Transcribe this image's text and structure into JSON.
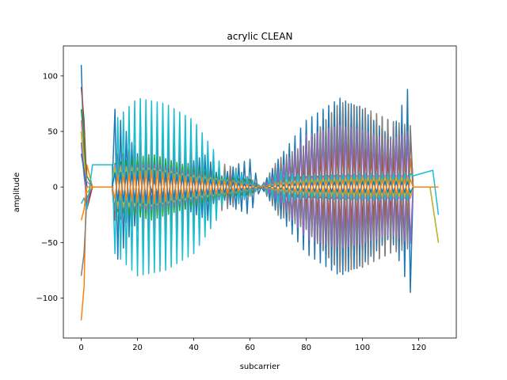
{
  "chart_data": {
    "type": "line",
    "title": "acrylic CLEAN",
    "xlabel": "subcarrier",
    "ylabel": "amplitude",
    "xlim": [
      -6.35,
      133.35
    ],
    "ylim": [
      -136,
      127
    ],
    "x_ticks": [
      0,
      20,
      40,
      60,
      80,
      100,
      120
    ],
    "y_ticks": [
      -100,
      -50,
      0,
      50,
      100
    ],
    "n_subcarriers": 128,
    "grid": false,
    "legend": "none",
    "approximate": true,
    "series": [
      {
        "color": "#1f77b4",
        "anchors": [
          [
            0,
            110
          ],
          [
            1,
            30
          ],
          [
            2,
            -15
          ],
          [
            4,
            0
          ],
          [
            11,
            0
          ],
          [
            12,
            -70
          ],
          [
            25,
            -5
          ],
          [
            45,
            -30
          ],
          [
            47,
            -15
          ],
          [
            50,
            -10
          ],
          [
            55,
            -20
          ],
          [
            60,
            -25
          ],
          [
            64,
            0
          ],
          [
            70,
            -25
          ],
          [
            80,
            -60
          ],
          [
            92,
            -80
          ],
          [
            100,
            -70
          ],
          [
            110,
            -45
          ],
          [
            117,
            -95
          ],
          [
            118,
            0
          ],
          [
            127,
            0
          ]
        ]
      },
      {
        "color": "#ff7f0e",
        "anchors": [
          [
            0,
            -120
          ],
          [
            1,
            -90
          ],
          [
            2,
            20
          ],
          [
            4,
            0
          ],
          [
            11,
            0
          ],
          [
            12,
            30
          ],
          [
            25,
            55
          ],
          [
            35,
            45
          ],
          [
            45,
            25
          ],
          [
            55,
            15
          ],
          [
            60,
            10
          ],
          [
            64,
            0
          ],
          [
            70,
            15
          ],
          [
            80,
            35
          ],
          [
            92,
            45
          ],
          [
            100,
            40
          ],
          [
            110,
            40
          ],
          [
            117,
            30
          ],
          [
            118,
            0
          ],
          [
            127,
            0
          ]
        ]
      },
      {
        "color": "#2ca02c",
        "anchors": [
          [
            0,
            70
          ],
          [
            1,
            40
          ],
          [
            2,
            10
          ],
          [
            4,
            0
          ],
          [
            11,
            0
          ],
          [
            12,
            25
          ],
          [
            25,
            35
          ],
          [
            40,
            20
          ],
          [
            50,
            10
          ],
          [
            60,
            8
          ],
          [
            64,
            0
          ],
          [
            70,
            10
          ],
          [
            90,
            12
          ],
          [
            117,
            12
          ],
          [
            118,
            0
          ],
          [
            127,
            0
          ]
        ]
      },
      {
        "color": "#d62728",
        "anchors": [
          [
            0,
            50
          ],
          [
            1,
            20
          ],
          [
            2,
            -20
          ],
          [
            4,
            0
          ],
          [
            11,
            0
          ],
          [
            12,
            -30
          ],
          [
            25,
            -25
          ],
          [
            35,
            -20
          ],
          [
            45,
            -15
          ],
          [
            55,
            -10
          ],
          [
            64,
            0
          ],
          [
            70,
            -12
          ],
          [
            80,
            -20
          ],
          [
            92,
            -40
          ],
          [
            100,
            -35
          ],
          [
            110,
            -25
          ],
          [
            117,
            -45
          ],
          [
            118,
            0
          ],
          [
            127,
            0
          ]
        ]
      },
      {
        "color": "#9467bd",
        "anchors": [
          [
            0,
            40
          ],
          [
            1,
            10
          ],
          [
            2,
            -10
          ],
          [
            4,
            0
          ],
          [
            11,
            0
          ],
          [
            12,
            20
          ],
          [
            25,
            25
          ],
          [
            40,
            15
          ],
          [
            50,
            8
          ],
          [
            60,
            5
          ],
          [
            64,
            0
          ],
          [
            70,
            -15
          ],
          [
            80,
            -55
          ],
          [
            92,
            -65
          ],
          [
            100,
            -60
          ],
          [
            110,
            -50
          ],
          [
            117,
            -60
          ],
          [
            118,
            0
          ],
          [
            124,
            0
          ],
          [
            127,
            -50
          ]
        ]
      },
      {
        "color": "#8c564b",
        "anchors": [
          [
            0,
            90
          ],
          [
            1,
            60
          ],
          [
            2,
            0
          ],
          [
            4,
            0
          ],
          [
            11,
            0
          ],
          [
            12,
            25
          ],
          [
            25,
            40
          ],
          [
            40,
            25
          ],
          [
            50,
            15
          ],
          [
            64,
            0
          ],
          [
            70,
            20
          ],
          [
            80,
            45
          ],
          [
            92,
            90
          ],
          [
            100,
            85
          ],
          [
            110,
            70
          ],
          [
            117,
            60
          ],
          [
            118,
            0
          ],
          [
            127,
            0
          ]
        ]
      },
      {
        "color": "#e377c2",
        "anchors": [
          [
            0,
            60
          ],
          [
            1,
            20
          ],
          [
            2,
            5
          ],
          [
            4,
            0
          ],
          [
            11,
            0
          ],
          [
            12,
            -20
          ],
          [
            25,
            -15
          ],
          [
            40,
            -10
          ],
          [
            55,
            -5
          ],
          [
            64,
            0
          ],
          [
            80,
            -8
          ],
          [
            100,
            -10
          ],
          [
            117,
            -10
          ],
          [
            118,
            0
          ],
          [
            127,
            0
          ]
        ]
      },
      {
        "color": "#7f7f7f",
        "anchors": [
          [
            0,
            -80
          ],
          [
            1,
            -60
          ],
          [
            2,
            -10
          ],
          [
            4,
            0
          ],
          [
            11,
            0
          ],
          [
            12,
            -25
          ],
          [
            25,
            -60
          ],
          [
            35,
            -50
          ],
          [
            45,
            -30
          ],
          [
            55,
            -20
          ],
          [
            64,
            0
          ],
          [
            70,
            -30
          ],
          [
            80,
            -45
          ],
          [
            92,
            -90
          ],
          [
            100,
            -85
          ],
          [
            110,
            -70
          ],
          [
            117,
            -65
          ],
          [
            118,
            0
          ],
          [
            127,
            0
          ]
        ]
      },
      {
        "color": "#bcbd22",
        "anchors": [
          [
            0,
            50
          ],
          [
            1,
            25
          ],
          [
            2,
            -5
          ],
          [
            4,
            0
          ],
          [
            11,
            0
          ],
          [
            12,
            20
          ],
          [
            25,
            20
          ],
          [
            40,
            12
          ],
          [
            55,
            6
          ],
          [
            64,
            0
          ],
          [
            80,
            8
          ],
          [
            100,
            10
          ],
          [
            117,
            10
          ],
          [
            118,
            0
          ],
          [
            124,
            0
          ],
          [
            127,
            -50
          ]
        ]
      },
      {
        "color": "#17becf",
        "anchors": [
          [
            0,
            -15
          ],
          [
            1,
            -10
          ],
          [
            2,
            -20
          ],
          [
            4,
            20
          ],
          [
            11,
            20
          ],
          [
            12,
            -60
          ],
          [
            20,
            -80
          ],
          [
            30,
            -75
          ],
          [
            40,
            -60
          ],
          [
            48,
            -30
          ],
          [
            55,
            15
          ],
          [
            64,
            0
          ],
          [
            70,
            15
          ],
          [
            80,
            10
          ],
          [
            100,
            12
          ],
          [
            117,
            12
          ],
          [
            118,
            10
          ],
          [
            125,
            15
          ],
          [
            127,
            -25
          ]
        ]
      },
      {
        "color": "#1f77b4",
        "anchors": [
          [
            0,
            30
          ],
          [
            1,
            15
          ],
          [
            2,
            0
          ],
          [
            4,
            0
          ],
          [
            11,
            0
          ],
          [
            12,
            15
          ],
          [
            25,
            18
          ],
          [
            40,
            10
          ],
          [
            55,
            5
          ],
          [
            64,
            0
          ],
          [
            80,
            5
          ],
          [
            100,
            6
          ],
          [
            117,
            6
          ],
          [
            118,
            0
          ],
          [
            127,
            0
          ]
        ]
      },
      {
        "color": "#ff7f0e",
        "anchors": [
          [
            0,
            -30
          ],
          [
            1,
            -20
          ],
          [
            2,
            0
          ],
          [
            4,
            0
          ],
          [
            11,
            0
          ],
          [
            12,
            -12
          ],
          [
            25,
            -18
          ],
          [
            40,
            -10
          ],
          [
            55,
            -5
          ],
          [
            64,
            0
          ],
          [
            70,
            -5
          ],
          [
            80,
            -6
          ],
          [
            100,
            -8
          ],
          [
            117,
            -8
          ],
          [
            118,
            0
          ],
          [
            127,
            0
          ]
        ]
      }
    ]
  }
}
